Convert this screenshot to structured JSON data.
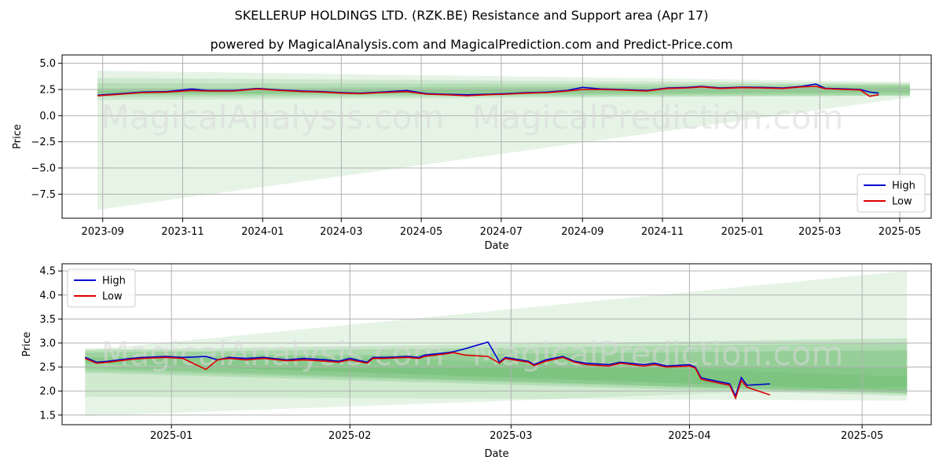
{
  "title": "SKELLERUP HOLDINGS LTD. (RZK.BE) Resistance and Support area (Apr 17)",
  "subtitle": "powered by MagicalAnalysis.com and MagicalPrediction.com and Predict-Price.com",
  "watermarks": [
    "MagicalAnalysis.com",
    "MagicalPrediction.com"
  ],
  "colors": {
    "high": "#0000cc",
    "low": "#dd0000",
    "band": "#4caf50",
    "grid": "#b0b0b0"
  },
  "chart_data": [
    {
      "type": "line",
      "xlabel": "Date",
      "ylabel": "Price",
      "xlim": [
        "2023-08-01",
        "2025-05-25"
      ],
      "ylim": [
        -9.8,
        5.8
      ],
      "grid": true,
      "legend": "lower-right",
      "x_ticks": [
        "2023-09",
        "2023-11",
        "2024-01",
        "2024-03",
        "2024-05",
        "2024-07",
        "2024-09",
        "2024-11",
        "2025-01",
        "2025-03",
        "2025-05"
      ],
      "y_ticks": [
        "5.0",
        "2.5",
        "0.0",
        "−2.5",
        "−5.0",
        "−7.5"
      ],
      "series": [
        {
          "name": "High",
          "x": [
            "2023-08-28",
            "2023-09-15",
            "2023-10-01",
            "2023-10-20",
            "2023-11-08",
            "2023-11-20",
            "2023-12-10",
            "2023-12-28",
            "2024-01-15",
            "2024-02-01",
            "2024-02-15",
            "2024-03-01",
            "2024-03-15",
            "2024-04-01",
            "2024-04-20",
            "2024-05-05",
            "2024-05-20",
            "2024-06-05",
            "2024-06-20",
            "2024-07-05",
            "2024-07-20",
            "2024-08-05",
            "2024-08-20",
            "2024-09-01",
            "2024-09-15",
            "2024-10-01",
            "2024-10-20",
            "2024-11-05",
            "2024-11-20",
            "2024-12-01",
            "2024-12-15",
            "2025-01-01",
            "2025-01-15",
            "2025-02-01",
            "2025-02-15",
            "2025-02-26",
            "2025-03-05",
            "2025-03-20",
            "2025-04-01",
            "2025-04-08",
            "2025-04-15"
          ],
          "values": [
            1.95,
            2.1,
            2.25,
            2.3,
            2.55,
            2.4,
            2.4,
            2.6,
            2.45,
            2.35,
            2.3,
            2.2,
            2.15,
            2.25,
            2.4,
            2.1,
            2.05,
            2.0,
            2.05,
            2.1,
            2.2,
            2.25,
            2.4,
            2.7,
            2.55,
            2.5,
            2.4,
            2.65,
            2.7,
            2.8,
            2.65,
            2.72,
            2.7,
            2.65,
            2.8,
            3.02,
            2.62,
            2.55,
            2.5,
            2.25,
            2.15
          ]
        },
        {
          "name": "Low",
          "x": [
            "2023-08-28",
            "2023-09-15",
            "2023-10-01",
            "2023-10-20",
            "2023-11-08",
            "2023-11-20",
            "2023-12-10",
            "2023-12-28",
            "2024-01-15",
            "2024-02-01",
            "2024-02-15",
            "2024-03-01",
            "2024-03-15",
            "2024-04-01",
            "2024-04-20",
            "2024-05-05",
            "2024-05-20",
            "2024-06-05",
            "2024-06-20",
            "2024-07-05",
            "2024-07-20",
            "2024-08-05",
            "2024-08-20",
            "2024-09-01",
            "2024-09-15",
            "2024-10-01",
            "2024-10-20",
            "2024-11-05",
            "2024-11-20",
            "2024-12-01",
            "2024-12-15",
            "2025-01-01",
            "2025-01-15",
            "2025-02-01",
            "2025-02-15",
            "2025-02-26",
            "2025-03-05",
            "2025-03-20",
            "2025-04-01",
            "2025-04-08",
            "2025-04-15"
          ],
          "values": [
            1.9,
            2.05,
            2.2,
            2.25,
            2.4,
            2.35,
            2.35,
            2.55,
            2.4,
            2.3,
            2.25,
            2.15,
            2.1,
            2.2,
            2.3,
            2.05,
            2.0,
            1.9,
            2.0,
            2.05,
            2.15,
            2.2,
            2.35,
            2.5,
            2.5,
            2.45,
            2.35,
            2.6,
            2.65,
            2.75,
            2.6,
            2.68,
            2.65,
            2.6,
            2.75,
            2.8,
            2.58,
            2.5,
            2.45,
            1.85,
            2.0
          ]
        }
      ]
    },
    {
      "type": "line",
      "xlabel": "Date",
      "ylabel": "Price",
      "xlim": [
        "2024-12-13",
        "2025-05-13"
      ],
      "ylim": [
        1.3,
        4.65
      ],
      "grid": true,
      "legend": "upper-left",
      "x_ticks": [
        "2025-01",
        "2025-02",
        "2025-03",
        "2025-04",
        "2025-05"
      ],
      "y_ticks": [
        "4.5",
        "4.0",
        "3.5",
        "3.0",
        "2.5",
        "2.0",
        "1.5"
      ],
      "series": [
        {
          "name": "High",
          "x": [
            "2024-12-17",
            "2024-12-19",
            "2024-12-21",
            "2024-12-25",
            "2024-12-27",
            "2024-12-31",
            "2025-01-03",
            "2025-01-07",
            "2025-01-09",
            "2025-01-11",
            "2025-01-14",
            "2025-01-17",
            "2025-01-21",
            "2025-01-24",
            "2025-01-28",
            "2025-01-30",
            "2025-02-01",
            "2025-02-04",
            "2025-02-05",
            "2025-02-07",
            "2025-02-11",
            "2025-02-13",
            "2025-02-14",
            "2025-02-18",
            "2025-02-19",
            "2025-02-21",
            "2025-02-25",
            "2025-02-27",
            "2025-02-28",
            "2025-03-04",
            "2025-03-05",
            "2025-03-07",
            "2025-03-10",
            "2025-03-12",
            "2025-03-14",
            "2025-03-18",
            "2025-03-20",
            "2025-03-24",
            "2025-03-26",
            "2025-03-28",
            "2025-04-01",
            "2025-04-02",
            "2025-04-03",
            "2025-04-04",
            "2025-04-08",
            "2025-04-09",
            "2025-04-10",
            "2025-04-11",
            "2025-04-15"
          ],
          "values": [
            2.7,
            2.6,
            2.62,
            2.68,
            2.7,
            2.72,
            2.7,
            2.72,
            2.65,
            2.7,
            2.68,
            2.7,
            2.65,
            2.68,
            2.65,
            2.62,
            2.68,
            2.6,
            2.7,
            2.7,
            2.72,
            2.7,
            2.75,
            2.8,
            2.82,
            2.88,
            3.02,
            2.6,
            2.7,
            2.62,
            2.55,
            2.65,
            2.72,
            2.62,
            2.58,
            2.55,
            2.6,
            2.55,
            2.58,
            2.52,
            2.55,
            2.5,
            2.28,
            2.25,
            2.15,
            1.9,
            2.28,
            2.12,
            2.15
          ]
        },
        {
          "name": "Low",
          "x": [
            "2024-12-17",
            "2024-12-19",
            "2024-12-21",
            "2024-12-25",
            "2024-12-27",
            "2024-12-31",
            "2025-01-03",
            "2025-01-07",
            "2025-01-09",
            "2025-01-11",
            "2025-01-14",
            "2025-01-17",
            "2025-01-21",
            "2025-01-24",
            "2025-01-28",
            "2025-01-30",
            "2025-02-01",
            "2025-02-04",
            "2025-02-05",
            "2025-02-07",
            "2025-02-11",
            "2025-02-13",
            "2025-02-14",
            "2025-02-18",
            "2025-02-19",
            "2025-02-21",
            "2025-02-25",
            "2025-02-27",
            "2025-02-28",
            "2025-03-04",
            "2025-03-05",
            "2025-03-07",
            "2025-03-10",
            "2025-03-12",
            "2025-03-14",
            "2025-03-18",
            "2025-03-20",
            "2025-03-24",
            "2025-03-26",
            "2025-03-28",
            "2025-04-01",
            "2025-04-02",
            "2025-04-03",
            "2025-04-04",
            "2025-04-08",
            "2025-04-09",
            "2025-04-10",
            "2025-04-11",
            "2025-04-15"
          ],
          "values": [
            2.68,
            2.58,
            2.6,
            2.66,
            2.68,
            2.7,
            2.68,
            2.45,
            2.65,
            2.68,
            2.65,
            2.68,
            2.63,
            2.65,
            2.62,
            2.6,
            2.65,
            2.58,
            2.68,
            2.68,
            2.7,
            2.68,
            2.72,
            2.78,
            2.8,
            2.75,
            2.72,
            2.58,
            2.68,
            2.6,
            2.53,
            2.62,
            2.7,
            2.6,
            2.55,
            2.52,
            2.58,
            2.52,
            2.55,
            2.5,
            2.52,
            2.48,
            2.25,
            2.22,
            2.12,
            1.85,
            2.22,
            2.08,
            1.92
          ]
        }
      ]
    }
  ]
}
